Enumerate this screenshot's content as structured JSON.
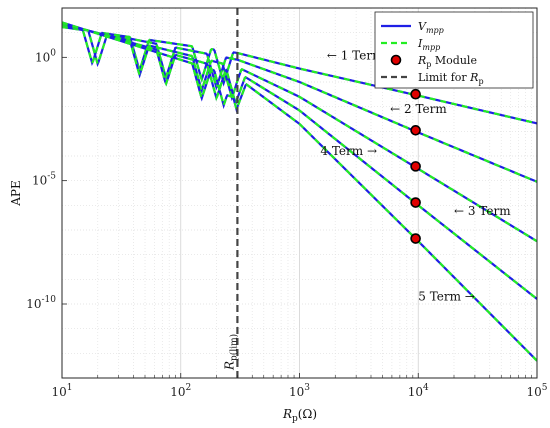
{
  "chart_data": {
    "type": "line",
    "xscale": "log",
    "yscale": "log",
    "xlim": [
      10,
      100000
    ],
    "ylim": [
      1e-13,
      100
    ],
    "grid": true,
    "legend_position": "top-right",
    "ylabel": "APE",
    "xlabel_main": "R",
    "xlabel_sub": "p",
    "xlabel_unit": "(Ω)",
    "xticks": [
      {
        "value": 10,
        "base": "10",
        "exp": "1"
      },
      {
        "value": 100,
        "base": "10",
        "exp": "2"
      },
      {
        "value": 1000,
        "base": "10",
        "exp": "3"
      },
      {
        "value": 10000,
        "base": "10",
        "exp": "4"
      },
      {
        "value": 100000,
        "base": "10",
        "exp": "5"
      }
    ],
    "yticks": [
      {
        "value": 1,
        "base": "10",
        "exp": "0"
      },
      {
        "value": 1e-05,
        "base": "10",
        "exp": "-5"
      },
      {
        "value": 1e-10,
        "base": "10",
        "exp": "-10"
      }
    ],
    "limit_line": {
      "x": 300,
      "label_main": "R",
      "label_sub": "p(lim)"
    },
    "legend": [
      {
        "key": "vmpp",
        "main": "V",
        "sub": "mpp",
        "style": "solid",
        "color": "#1f1fe6"
      },
      {
        "key": "impp",
        "main": "I",
        "sub": "mpp",
        "style": "dashed",
        "color": "#22ee22"
      },
      {
        "key": "rp",
        "main": "R",
        "sub": "p",
        "suffix": " Module",
        "style": "marker",
        "color": "#e00000"
      },
      {
        "key": "limit",
        "text": "Limit for ",
        "main": "R",
        "sub": "p",
        "style": "dashed",
        "color": "#444444"
      }
    ],
    "series": [
      {
        "name": "1 Term",
        "x": [
          10,
          300,
          1000,
          10000,
          100000
        ],
        "y": [
          17,
          1.5,
          0.35,
          0.028,
          0.0021
        ],
        "dips": [
          18,
          45,
          150,
          230
        ]
      },
      {
        "name": "2 Term",
        "x": [
          10,
          300,
          1000,
          10000,
          100000
        ],
        "y": [
          20,
          0.8,
          0.1,
          0.0009,
          9e-06
        ],
        "dips": [
          20,
          75,
          200
        ]
      },
      {
        "name": "3 Term",
        "x": [
          10,
          300,
          1000,
          10000,
          100000
        ],
        "y": [
          22,
          0.4,
          0.025,
          3e-05,
          3.5e-08
        ],
        "dips": [
          45,
          150,
          270
        ]
      },
      {
        "name": "4 Term",
        "x": [
          10,
          300,
          1000,
          10000,
          100000
        ],
        "y": [
          24,
          0.25,
          0.007,
          1e-06,
          1.6e-10
        ],
        "dips": [
          75,
          200,
          290
        ]
      },
      {
        "name": "5 Term",
        "x": [
          10,
          300,
          1000,
          10000,
          100000
        ],
        "y": [
          26,
          0.15,
          0.002,
          3.5e-08,
          5e-13
        ],
        "dips": [
          150,
          230,
          295
        ]
      }
    ],
    "rp_module_points": [
      {
        "x": 9500,
        "y": 0.032
      },
      {
        "x": 9500,
        "y": 0.0011
      },
      {
        "x": 9500,
        "y": 3.8e-05
      },
      {
        "x": 9500,
        "y": 1.3e-06
      },
      {
        "x": 9500,
        "y": 4.5e-08
      }
    ],
    "annotations": [
      {
        "text": "← 1 Term",
        "series": "1 Term",
        "x": 1700,
        "y": 1.2
      },
      {
        "text": "← 2 Term",
        "series": "2 Term",
        "x": 5800,
        "y": 0.008
      },
      {
        "text": "← 3 Term",
        "series": "3 Term",
        "x": 20000,
        "y": 6e-07
      },
      {
        "text": "4 Term →",
        "series": "4 Term",
        "x": 1500,
        "y": 0.00016
      },
      {
        "text": "5 Term →",
        "series": "5 Term",
        "x": 10000,
        "y": 2e-10
      }
    ]
  }
}
